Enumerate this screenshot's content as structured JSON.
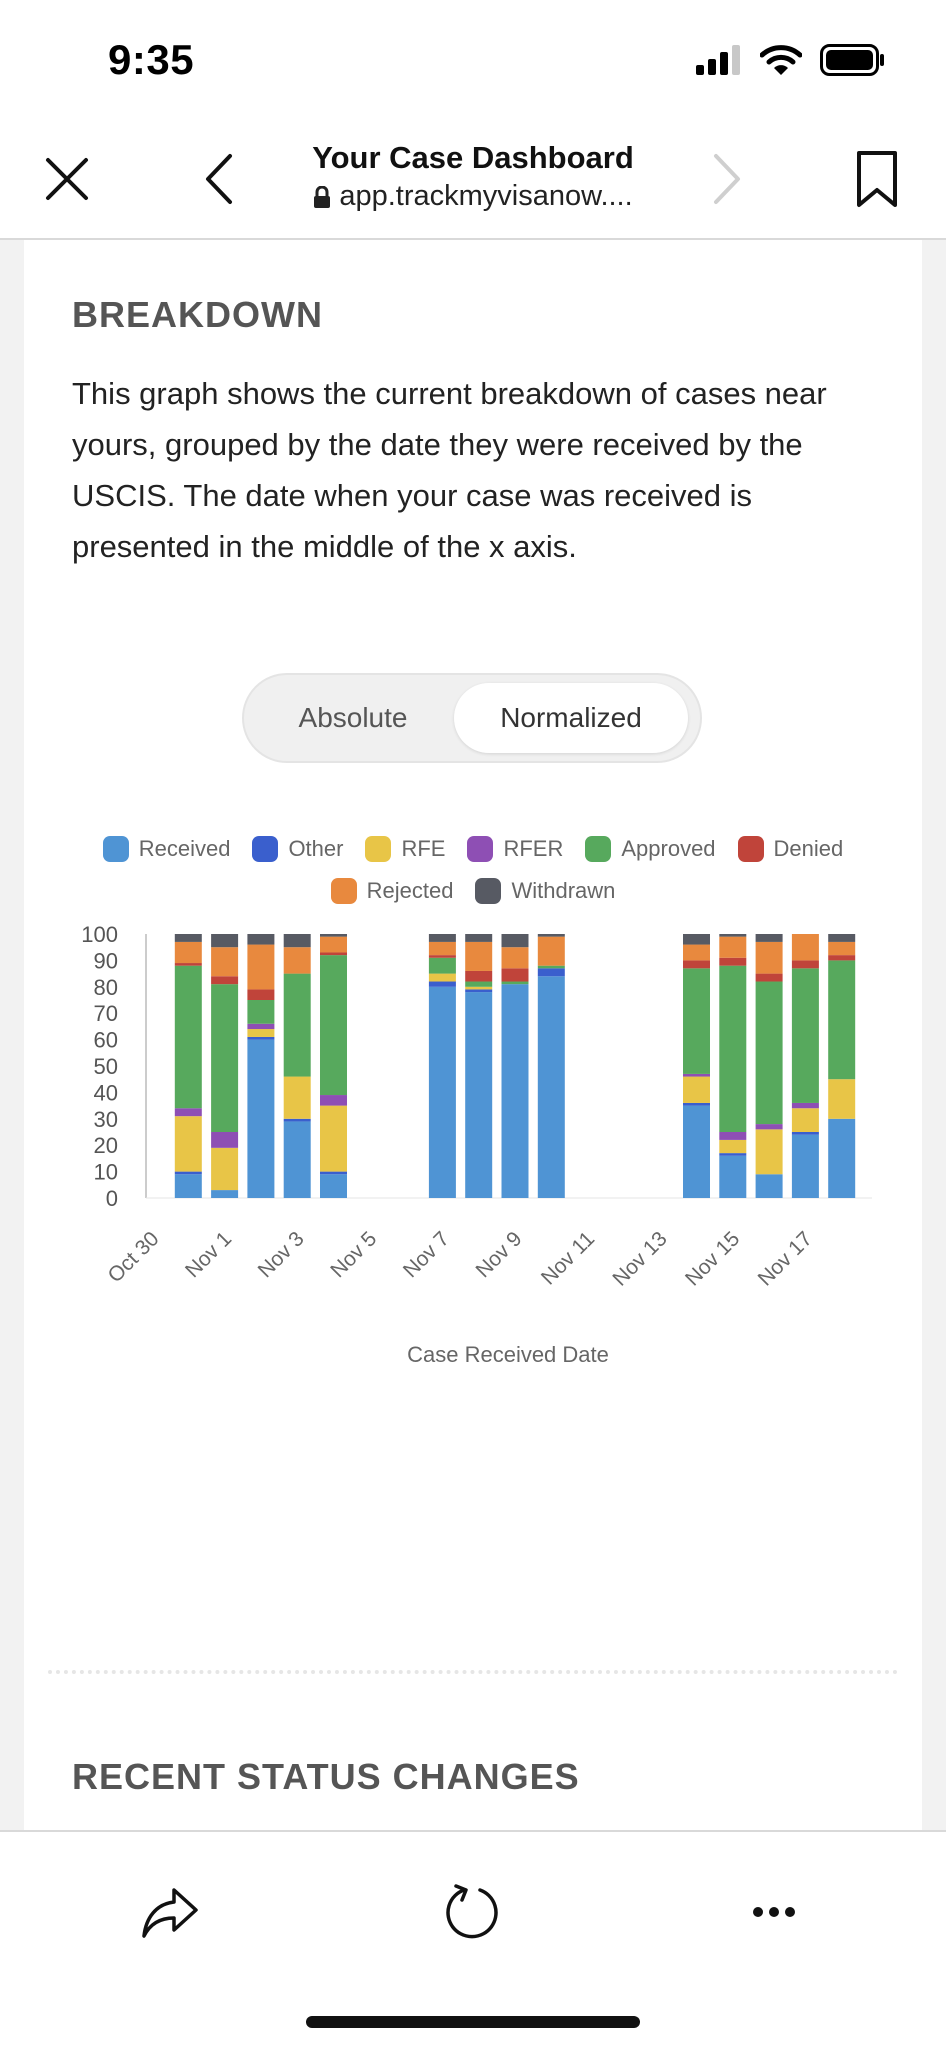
{
  "status_bar": {
    "time": "9:35"
  },
  "browser": {
    "title": "Your Case Dashboard",
    "url": "app.trackmyvisanow...."
  },
  "breakdown": {
    "title": "BREAKDOWN",
    "description": "This graph shows the current breakdown of cases near yours, grouped by the date they were received by the USCIS. The date when your case was received is presented in the middle of the x axis.",
    "toggle": {
      "options": [
        "Absolute",
        "Normalized"
      ],
      "selected": "Normalized"
    }
  },
  "legend": [
    {
      "label": "Received",
      "color": "#4f94d4"
    },
    {
      "label": "Other",
      "color": "#3a5fcd"
    },
    {
      "label": "RFE",
      "color": "#e8c547"
    },
    {
      "label": "RFER",
      "color": "#8e4fb4"
    },
    {
      "label": "Approved",
      "color": "#57a95d"
    },
    {
      "label": "Denied",
      "color": "#c0443a"
    },
    {
      "label": "Rejected",
      "color": "#e8893e"
    },
    {
      "label": "Withdrawn",
      "color": "#575a63"
    }
  ],
  "chart_data": {
    "type": "bar",
    "stacked": true,
    "xlabel": "Case Received Date",
    "ylim": [
      0,
      100
    ],
    "yticks": [
      0,
      10,
      20,
      30,
      40,
      50,
      60,
      70,
      80,
      90,
      100
    ],
    "x_tick_labels": [
      "Oct 30",
      "Nov 1",
      "Nov 3",
      "Nov 5",
      "Nov 7",
      "Nov 9",
      "Nov 11",
      "Nov 13",
      "Nov 15",
      "Nov 17"
    ],
    "categories": [
      "Oct 31",
      "Nov 1",
      "Nov 2",
      "Nov 3",
      "Nov 4",
      "Nov 7",
      "Nov 8",
      "Nov 9",
      "Nov 10",
      "Nov 14",
      "Nov 15",
      "Nov 16",
      "Nov 17",
      "Nov 18"
    ],
    "series": [
      {
        "name": "Received",
        "values": [
          9,
          3,
          60,
          29,
          9,
          80,
          78,
          81,
          84,
          35,
          16,
          9,
          24,
          30
        ]
      },
      {
        "name": "Other",
        "values": [
          1,
          0,
          1,
          1,
          1,
          2,
          1,
          0,
          3,
          1,
          1,
          0,
          1,
          0
        ]
      },
      {
        "name": "RFE",
        "values": [
          21,
          16,
          3,
          16,
          25,
          3,
          1,
          0,
          0,
          10,
          5,
          17,
          9,
          15
        ]
      },
      {
        "name": "RFER",
        "values": [
          3,
          6,
          2,
          0,
          4,
          0,
          0,
          0,
          0,
          1,
          3,
          2,
          2,
          0
        ]
      },
      {
        "name": "Approved",
        "values": [
          54,
          56,
          9,
          39,
          53,
          6,
          2,
          1,
          1,
          40,
          63,
          54,
          51,
          45
        ]
      },
      {
        "name": "Denied",
        "values": [
          1,
          3,
          4,
          0,
          1,
          1,
          4,
          5,
          0,
          3,
          3,
          3,
          3,
          2
        ]
      },
      {
        "name": "Rejected",
        "values": [
          8,
          11,
          17,
          10,
          6,
          5,
          11,
          8,
          11,
          6,
          8,
          12,
          10,
          5
        ]
      },
      {
        "name": "Withdrawn",
        "values": [
          3,
          5,
          4,
          5,
          1,
          3,
          3,
          5,
          1,
          4,
          1,
          3,
          0,
          3
        ]
      }
    ],
    "legend_position": "top-center",
    "grid": false
  },
  "recent": {
    "title": "RECENT STATUS CHANGES"
  }
}
